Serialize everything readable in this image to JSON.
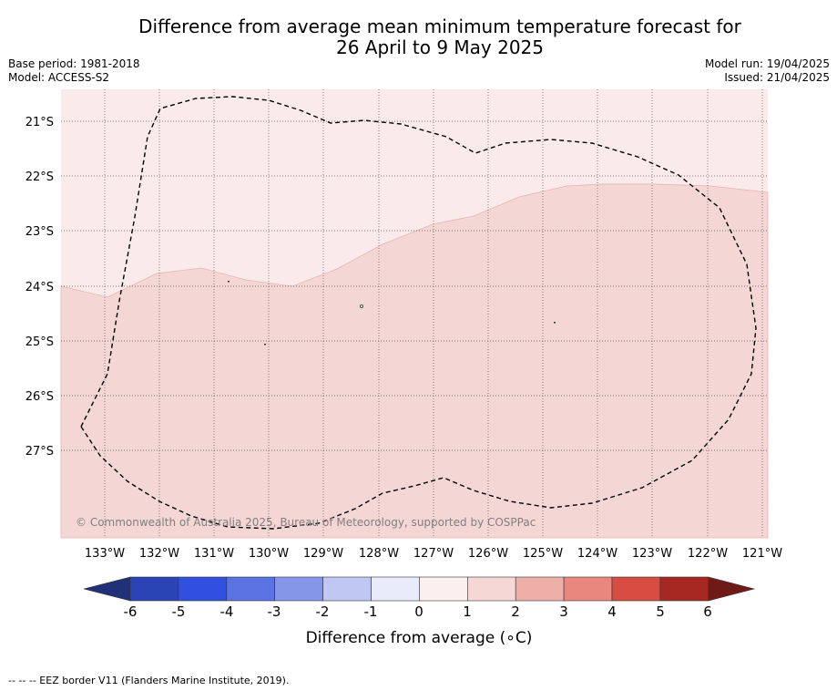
{
  "title": {
    "line1": "Difference from average mean minimum temperature forecast for",
    "line2": "26 April to 9 May 2025"
  },
  "meta_left": {
    "base_period": "Base period: 1981-2018",
    "model": "Model: ACCESS-S2"
  },
  "meta_right": {
    "model_run": "Model run: 19/04/2025",
    "issued": "Issued: 21/04/2025"
  },
  "map": {
    "lat_labels": [
      "21°S",
      "22°S",
      "23°S",
      "24°S",
      "25°S",
      "26°S",
      "27°S"
    ],
    "lon_labels": [
      "133°W",
      "132°W",
      "131°W",
      "130°W",
      "129°W",
      "128°W",
      "127°W",
      "126°W",
      "125°W",
      "124°W",
      "123°W",
      "122°W",
      "121°W"
    ],
    "copyright": "© Commonwealth of Australia 2025, Bureau of Meteorology, supported by COSPPac",
    "anomaly_classes_shown_c": [
      "0 to 1",
      "1 to 2"
    ],
    "colors": {
      "class_0_1": "#faebea",
      "class_1_2": "#f4d6d4"
    }
  },
  "colorbar": {
    "tick_labels": [
      "-6",
      "-5",
      "-4",
      "-3",
      "-2",
      "-1",
      "0",
      "1",
      "2",
      "3",
      "4",
      "5",
      "6"
    ],
    "label": "Difference from average (∘C)",
    "colors": [
      "#22307a",
      "#2a44b6",
      "#3250df",
      "#5b72e2",
      "#8596e8",
      "#c1c7f3",
      "#e9ebfa",
      "#fcf0ef",
      "#f5d7d5",
      "#eeafa9",
      "#e9877f",
      "#d84c41",
      "#a72823",
      "#6e1b17"
    ]
  },
  "footer": "--  --  -- EEZ border V11 (Flanders Marine Institute, 2019)."
}
